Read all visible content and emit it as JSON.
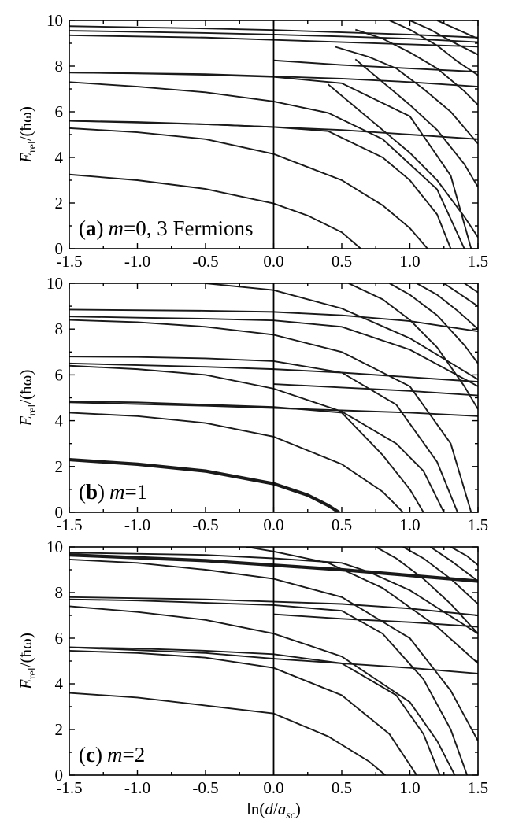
{
  "chart_data": [
    {
      "type": "line",
      "panel_label": "(a) m=0, 3 Fermions",
      "tag": {
        "paren_open": "(",
        "letter": "a",
        "paren_close": ")",
        "var": "m",
        "rest": "=0, 3 Fermions"
      },
      "xlim": [
        -1.5,
        1.5
      ],
      "ylim": [
        0,
        10
      ],
      "xticks": [
        -1.5,
        -1.0,
        -0.5,
        0.0,
        0.5,
        1.0,
        1.5
      ],
      "xtick_labels": [
        "-1.5",
        "-1.0",
        "-0.5",
        "0.0",
        "0.5",
        "1.0",
        "1.5"
      ],
      "yticks": [
        0,
        2,
        4,
        6,
        8,
        10
      ],
      "ytick_labels": [
        "0",
        "2",
        "4",
        "6",
        "8",
        "10"
      ],
      "ylabel": {
        "main": "E",
        "sub": "rel",
        "rest": "/(ħω)"
      },
      "vertical_line_x": 0.0,
      "series": [
        {
          "x": [
            -1.5,
            -1.0,
            -0.5,
            0.0,
            0.25,
            0.5,
            0.64
          ],
          "y": [
            3.25,
            3.0,
            2.62,
            1.98,
            1.45,
            0.72,
            0.0
          ]
        },
        {
          "x": [
            -1.5,
            -1.0,
            -0.5,
            0.0,
            0.5,
            0.8,
            1.0,
            1.13
          ],
          "y": [
            5.28,
            5.1,
            4.8,
            4.15,
            3.0,
            1.9,
            0.9,
            0.0
          ]
        },
        {
          "x": [
            -1.5,
            -1.0,
            -0.5,
            0.0,
            0.4,
            0.8,
            1.0,
            1.2,
            1.3
          ],
          "y": [
            5.6,
            5.55,
            5.45,
            5.33,
            5.15,
            4.0,
            3.0,
            1.5,
            0.0
          ]
        },
        {
          "x": [
            -1.5,
            -1.0,
            -0.5,
            0.0,
            0.4,
            0.8,
            1.2,
            1.4
          ],
          "y": [
            7.3,
            7.1,
            6.85,
            6.45,
            5.95,
            4.8,
            2.6,
            0.0
          ]
        },
        {
          "x": [
            -1.5,
            -1.0,
            -0.5,
            0.0,
            0.5,
            1.0,
            1.3,
            1.45
          ],
          "y": [
            7.72,
            7.68,
            7.62,
            7.53,
            7.25,
            5.8,
            3.2,
            0.0
          ]
        },
        {
          "x": [
            0.4,
            0.6,
            0.8,
            1.0,
            1.2,
            1.4,
            1.5
          ],
          "y": [
            7.2,
            6.2,
            5.2,
            4.2,
            3.0,
            1.4,
            0.5
          ]
        },
        {
          "x": [
            0.6,
            0.8,
            1.0,
            1.2,
            1.4,
            1.5
          ],
          "y": [
            8.3,
            7.3,
            6.3,
            5.2,
            3.7,
            2.7
          ]
        },
        {
          "x": [
            0.45,
            0.7,
            0.9,
            1.1,
            1.3,
            1.5
          ],
          "y": [
            8.85,
            8.4,
            7.9,
            7.0,
            6.0,
            4.6
          ]
        },
        {
          "x": [
            0.6,
            0.8,
            1.0,
            1.2,
            1.4,
            1.5
          ],
          "y": [
            9.6,
            9.2,
            8.6,
            7.9,
            6.9,
            6.3
          ]
        },
        {
          "x": [
            0.85,
            1.0,
            1.2,
            1.35,
            1.5
          ],
          "y": [
            10.0,
            9.6,
            8.9,
            8.2,
            7.6
          ]
        },
        {
          "x": [
            1.0,
            1.15,
            1.3,
            1.5
          ],
          "y": [
            10.0,
            9.6,
            9.1,
            8.5
          ]
        },
        {
          "x": [
            1.2,
            1.35,
            1.5
          ],
          "y": [
            10.0,
            9.6,
            9.2
          ]
        },
        {
          "x": [
            -1.5,
            -0.5,
            0.0,
            0.5,
            1.0,
            1.5
          ],
          "y": [
            9.35,
            9.25,
            9.15,
            9.05,
            8.95,
            8.85
          ]
        },
        {
          "x": [
            -1.5,
            -0.5,
            0.0,
            0.5,
            1.0,
            1.5
          ],
          "y": [
            9.55,
            9.45,
            9.38,
            9.3,
            9.2,
            9.05
          ]
        },
        {
          "x": [
            -1.5,
            -0.5,
            0.0,
            0.5,
            1.0,
            1.5
          ],
          "y": [
            9.75,
            9.65,
            9.58,
            9.48,
            9.38,
            9.25
          ]
        },
        {
          "x": [
            -1.5,
            -0.5,
            0.0,
            0.5,
            1.0,
            1.5
          ],
          "y": [
            7.72,
            7.65,
            7.55,
            7.45,
            7.3,
            7.1
          ]
        },
        {
          "x": [
            -1.5,
            -0.5,
            0.0,
            0.5,
            1.0,
            1.5
          ],
          "y": [
            5.6,
            5.45,
            5.33,
            5.2,
            5.0,
            4.8
          ]
        },
        {
          "x": [
            0.0,
            0.5,
            1.0,
            1.5
          ],
          "y": [
            8.25,
            8.05,
            7.9,
            7.75
          ]
        }
      ]
    },
    {
      "type": "line",
      "panel_label": "(b) m=1",
      "tag": {
        "paren_open": "(",
        "letter": "b",
        "paren_close": ")",
        "var": "m",
        "rest": "=1"
      },
      "xlim": [
        -1.5,
        1.5
      ],
      "ylim": [
        0,
        10
      ],
      "xticks": [
        -1.5,
        -1.0,
        -0.5,
        0.0,
        0.5,
        1.0,
        1.5
      ],
      "xtick_labels": [
        "-1.5",
        "-1.0",
        "-0.5",
        "0.0",
        "0.5",
        "1.0",
        "1.5"
      ],
      "yticks": [
        0,
        2,
        4,
        6,
        8,
        10
      ],
      "ytick_labels": [
        "0",
        "2",
        "4",
        "6",
        "8",
        "10"
      ],
      "ylabel": {
        "main": "E",
        "sub": "rel",
        "rest": "/(ħω)"
      },
      "vertical_line_x": 0.0,
      "series": [
        {
          "x": [
            -1.5,
            -1.0,
            -0.5,
            0.0,
            0.25,
            0.4,
            0.48
          ],
          "y": [
            2.3,
            2.1,
            1.8,
            1.25,
            0.75,
            0.3,
            0.0
          ],
          "bold": true
        },
        {
          "x": [
            -1.5,
            -1.0,
            -0.5,
            0.0,
            0.5,
            0.8,
            0.95
          ],
          "y": [
            4.35,
            4.2,
            3.9,
            3.3,
            2.1,
            0.9,
            0.0
          ]
        },
        {
          "x": [
            -1.5,
            -1.0,
            -0.5,
            0.0,
            0.5,
            0.8,
            1.0,
            1.1
          ],
          "y": [
            4.85,
            4.8,
            4.7,
            4.6,
            4.35,
            2.5,
            1.0,
            0.0
          ]
        },
        {
          "x": [
            -1.5,
            -1.0,
            -0.5,
            0.0,
            0.5,
            0.9,
            1.1,
            1.25
          ],
          "y": [
            6.4,
            6.25,
            6.0,
            5.4,
            4.4,
            3.0,
            1.8,
            0.0
          ]
        },
        {
          "x": [
            -1.5,
            -1.0,
            -0.5,
            0.0,
            0.5,
            0.9,
            1.2,
            1.35
          ],
          "y": [
            6.8,
            6.78,
            6.72,
            6.6,
            6.1,
            4.7,
            2.2,
            0.0
          ]
        },
        {
          "x": [
            -1.5,
            -1.0,
            -0.5,
            0.0,
            0.5,
            1.0,
            1.3,
            1.45
          ],
          "y": [
            8.4,
            8.3,
            8.1,
            7.75,
            7.0,
            5.5,
            3.0,
            0.0
          ]
        },
        {
          "x": [
            -1.5,
            -1.0,
            -0.5,
            0.0,
            0.5,
            1.0,
            1.5
          ],
          "y": [
            8.55,
            8.5,
            8.45,
            8.38,
            8.1,
            7.1,
            5.5
          ]
        },
        {
          "x": [
            -1.5,
            -0.5,
            0.0,
            0.5,
            1.0,
            1.5
          ],
          "y": [
            8.85,
            8.8,
            8.75,
            8.6,
            8.35,
            7.9
          ]
        },
        {
          "x": [
            -0.5,
            0.0,
            0.5,
            1.0,
            1.5
          ],
          "y": [
            10.0,
            9.7,
            8.9,
            7.6,
            5.8
          ]
        },
        {
          "x": [
            0.55,
            0.8,
            1.0,
            1.2,
            1.4,
            1.5
          ],
          "y": [
            10.0,
            9.3,
            8.4,
            7.2,
            5.5,
            4.5
          ]
        },
        {
          "x": [
            0.85,
            1.0,
            1.2,
            1.4,
            1.5
          ],
          "y": [
            10.0,
            9.5,
            8.6,
            7.3,
            6.5
          ]
        },
        {
          "x": [
            1.05,
            1.2,
            1.35,
            1.5
          ],
          "y": [
            10.0,
            9.5,
            8.8,
            8.0
          ]
        },
        {
          "x": [
            1.25,
            1.4,
            1.5
          ],
          "y": [
            10.0,
            9.4,
            9.0
          ]
        },
        {
          "x": [
            1.4,
            1.5
          ],
          "y": [
            10.0,
            9.6
          ]
        },
        {
          "x": [
            -1.5,
            -0.5,
            0.0,
            0.5,
            1.0,
            1.5
          ],
          "y": [
            6.5,
            6.35,
            6.25,
            6.1,
            5.9,
            5.7
          ]
        },
        {
          "x": [
            -1.5,
            -0.5,
            0.0,
            0.5,
            1.0,
            1.5
          ],
          "y": [
            4.8,
            4.65,
            4.55,
            4.45,
            4.35,
            4.2
          ]
        },
        {
          "x": [
            0.0,
            0.5,
            1.0,
            1.5
          ],
          "y": [
            5.6,
            5.45,
            5.3,
            5.1
          ]
        }
      ]
    },
    {
      "type": "line",
      "panel_label": "(c) m=2",
      "tag": {
        "paren_open": "(",
        "letter": "c",
        "paren_close": ")",
        "var": "m",
        "rest": "=2"
      },
      "xlim": [
        -1.5,
        1.5
      ],
      "ylim": [
        0,
        10
      ],
      "xticks": [
        -1.5,
        -1.0,
        -0.5,
        0.0,
        0.5,
        1.0,
        1.5
      ],
      "xtick_labels": [
        "-1.5",
        "-1.0",
        "-0.5",
        "0.0",
        "0.5",
        "1.0",
        "1.5"
      ],
      "yticks": [
        0,
        2,
        4,
        6,
        8,
        10
      ],
      "ytick_labels": [
        "0",
        "2",
        "4",
        "6",
        "8",
        "10"
      ],
      "ylabel": {
        "main": "E",
        "sub": "rel",
        "rest": "/(ħω)"
      },
      "xlabel": {
        "pre": "ln(",
        "main": "d",
        "slash": "/",
        "a": "a",
        "sub": "sc",
        "post": ")"
      },
      "vertical_line_x": 0.0,
      "series": [
        {
          "x": [
            -1.5,
            -1.0,
            -0.5,
            0.0,
            0.4,
            0.7,
            0.82
          ],
          "y": [
            3.6,
            3.4,
            3.05,
            2.7,
            1.7,
            0.6,
            0.0
          ]
        },
        {
          "x": [
            -1.5,
            -1.0,
            -0.5,
            0.0,
            0.5,
            0.85,
            1.05
          ],
          "y": [
            5.45,
            5.35,
            5.15,
            4.7,
            3.5,
            1.8,
            0.0
          ]
        },
        {
          "x": [
            -1.5,
            -1.0,
            -0.5,
            0.0,
            0.5,
            0.9,
            1.1,
            1.22
          ],
          "y": [
            5.6,
            5.55,
            5.45,
            5.3,
            4.9,
            3.5,
            1.8,
            0.0
          ]
        },
        {
          "x": [
            -1.5,
            -1.0,
            -0.5,
            0.0,
            0.5,
            1.0,
            1.2,
            1.33
          ],
          "y": [
            7.4,
            7.15,
            6.8,
            6.2,
            5.2,
            3.2,
            1.5,
            0.0
          ]
        },
        {
          "x": [
            -1.5,
            -1.0,
            -0.5,
            0.0,
            0.5,
            0.8,
            1.1,
            1.3,
            1.42
          ],
          "y": [
            7.7,
            7.65,
            7.55,
            7.45,
            7.2,
            6.2,
            4.2,
            2.0,
            0.0
          ]
        },
        {
          "x": [
            -1.5,
            -1.0,
            -0.5,
            0.0,
            0.5,
            1.0,
            1.3,
            1.5
          ],
          "y": [
            9.45,
            9.3,
            9.0,
            8.6,
            7.8,
            6.0,
            3.7,
            1.5
          ]
        },
        {
          "x": [
            -1.5,
            -0.5,
            0.0,
            0.5,
            1.0,
            1.5
          ],
          "y": [
            9.65,
            9.4,
            9.2,
            9.0,
            8.75,
            8.5
          ],
          "bold": true
        },
        {
          "x": [
            -1.5,
            -0.5,
            0.0,
            0.5,
            0.7,
            1.0,
            1.5
          ],
          "y": [
            9.75,
            9.65,
            9.5,
            9.3,
            8.9,
            8.1,
            6.2
          ]
        },
        {
          "x": [
            -0.2,
            0.0,
            0.4,
            0.8,
            1.2,
            1.5
          ],
          "y": [
            10.0,
            9.8,
            9.3,
            8.2,
            6.5,
            4.9
          ]
        },
        {
          "x": [
            0.75,
            0.9,
            1.1,
            1.3,
            1.5
          ],
          "y": [
            10.0,
            9.5,
            8.6,
            7.5,
            6.2
          ]
        },
        {
          "x": [
            0.95,
            1.1,
            1.3,
            1.5
          ],
          "y": [
            10.0,
            9.5,
            8.6,
            7.5
          ]
        },
        {
          "x": [
            1.15,
            1.3,
            1.5
          ],
          "y": [
            10.0,
            9.4,
            8.5
          ]
        },
        {
          "x": [
            1.3,
            1.42,
            1.5
          ],
          "y": [
            10.0,
            9.6,
            9.2
          ]
        },
        {
          "x": [
            -1.5,
            -0.5,
            0.0,
            0.5,
            1.0,
            1.5
          ],
          "y": [
            7.8,
            7.7,
            7.6,
            7.5,
            7.3,
            7.0
          ]
        },
        {
          "x": [
            -1.5,
            -0.5,
            0.0,
            0.5,
            1.0,
            1.5
          ],
          "y": [
            5.6,
            5.35,
            5.1,
            4.9,
            4.7,
            4.45
          ]
        },
        {
          "x": [
            0.0,
            0.5,
            1.0,
            1.5
          ],
          "y": [
            7.05,
            6.85,
            6.7,
            6.5
          ]
        }
      ]
    }
  ]
}
